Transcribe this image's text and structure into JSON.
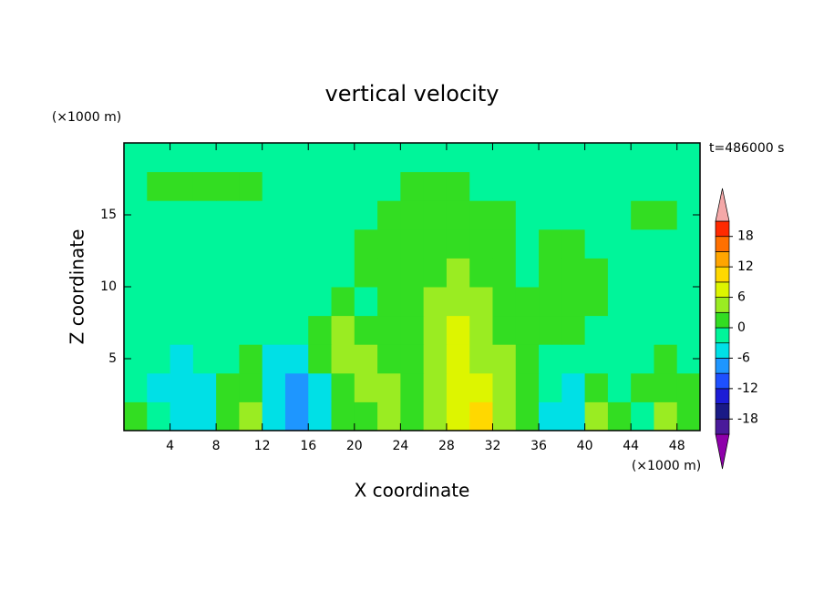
{
  "chart_data": {
    "type": "contour",
    "title": "vertical velocity",
    "xlabel": "X coordinate",
    "ylabel": "Z coordinate",
    "x_unit_label": "(×1000 m)",
    "y_unit_label": "(×1000 m)",
    "time_label": "t=486000 s",
    "xlim": [
      0,
      50
    ],
    "ylim": [
      0,
      20
    ],
    "xticks": [
      4,
      8,
      12,
      16,
      20,
      24,
      28,
      32,
      36,
      40,
      44,
      48
    ],
    "yticks": [
      5,
      10,
      15
    ],
    "x": [
      1,
      3,
      5,
      7,
      9,
      11,
      13,
      15,
      17,
      19,
      21,
      23,
      25,
      27,
      29,
      31,
      33,
      35,
      37,
      39,
      41,
      43,
      45,
      47,
      49
    ],
    "y": [
      1,
      3,
      5,
      7,
      9,
      11,
      13,
      15,
      17,
      19
    ],
    "z": [
      [
        1.5,
        -1,
        -4.5,
        -4.5,
        1.5,
        4.5,
        -4.5,
        -7.5,
        -4.5,
        1.5,
        1.5,
        4.5,
        1.5,
        4.5,
        7.5,
        10.5,
        4.5,
        1.5,
        -4.5,
        -4.5,
        4.5,
        1.5,
        -1,
        4.5,
        1.5
      ],
      [
        -1,
        -4.5,
        -4.5,
        -4.5,
        1.5,
        1.5,
        -4.5,
        -7.5,
        -4.5,
        1.5,
        4.5,
        4.5,
        1.5,
        4.5,
        7.5,
        7.5,
        4.5,
        1.5,
        -1,
        -4.5,
        1.5,
        -1,
        1.5,
        1.5,
        1.5
      ],
      [
        -1,
        -1,
        -4.5,
        -1,
        -1,
        1.5,
        -4.5,
        -4.5,
        1.5,
        4.5,
        4.5,
        1.5,
        1.5,
        4.5,
        7.5,
        4.5,
        4.5,
        1.5,
        -1,
        -1,
        -1,
        -1,
        -1,
        1.5,
        -1
      ],
      [
        -1,
        -1,
        -1,
        -1,
        -1,
        -1,
        -1,
        -1,
        1.5,
        4.5,
        1.5,
        1.5,
        1.5,
        4.5,
        7.5,
        4.5,
        1.5,
        1.5,
        1.5,
        1.5,
        -1,
        -1,
        -1,
        -1,
        -1
      ],
      [
        -1,
        -1,
        -1,
        -1,
        -1,
        -1,
        -1,
        -1,
        -1,
        1.5,
        -1,
        1.5,
        1.5,
        4.5,
        4.5,
        4.5,
        1.5,
        1.5,
        1.5,
        1.5,
        1.5,
        -1,
        -1,
        -1,
        -1
      ],
      [
        -1,
        -1,
        -1,
        -1,
        -1,
        -1,
        -1,
        -1,
        -1,
        -1,
        1.5,
        1.5,
        1.5,
        1.5,
        4.5,
        1.5,
        1.5,
        -1,
        1.5,
        1.5,
        1.5,
        -1,
        -1,
        -1,
        -1
      ],
      [
        -1,
        -1,
        -1,
        -1,
        -1,
        -1,
        -1,
        -1,
        -1,
        -1,
        1.5,
        1.5,
        1.5,
        1.5,
        1.5,
        1.5,
        1.5,
        -1,
        1.5,
        1.5,
        -1,
        -1,
        -1,
        -1,
        -1
      ],
      [
        -1,
        -1,
        -1,
        -1,
        -1,
        -1,
        -1,
        -1,
        -1,
        -1,
        -1,
        1.5,
        1.5,
        1.5,
        1.5,
        1.5,
        1.5,
        -1,
        -1,
        -1,
        -1,
        -1,
        1.5,
        1.5,
        -1
      ],
      [
        -1,
        1.5,
        1.5,
        1.5,
        1.5,
        1.5,
        -1,
        -1,
        -1,
        -1,
        -1,
        -1,
        1.5,
        1.5,
        1.5,
        -1,
        -1,
        -1,
        -1,
        -1,
        -1,
        -1,
        -1,
        -1,
        -1
      ],
      [
        -1,
        -1,
        -1,
        -1,
        -1,
        -1,
        -1,
        -1,
        -1,
        -1,
        -1,
        -1,
        -1,
        -1,
        -1,
        -1,
        -1,
        -1,
        -1,
        -1,
        -1,
        -1,
        -1,
        -1,
        -1
      ]
    ],
    "colorbar": {
      "levels": [
        -21,
        -18,
        -15,
        -12,
        -9,
        -6,
        -3,
        0,
        3,
        6,
        9,
        12,
        15,
        18,
        21
      ],
      "ticks": [
        -18,
        -12,
        -6,
        0,
        6,
        12,
        18
      ],
      "colors": [
        "#8e00aa",
        "#4a1a9a",
        "#1a1a86",
        "#1c1cd6",
        "#1e50ff",
        "#1e96ff",
        "#00e0e6",
        "#00f59a",
        "#33dd22",
        "#9aec22",
        "#ddf500",
        "#ffd800",
        "#ffa500",
        "#ff7000",
        "#ff2a00",
        "#f4a8a8"
      ]
    }
  }
}
